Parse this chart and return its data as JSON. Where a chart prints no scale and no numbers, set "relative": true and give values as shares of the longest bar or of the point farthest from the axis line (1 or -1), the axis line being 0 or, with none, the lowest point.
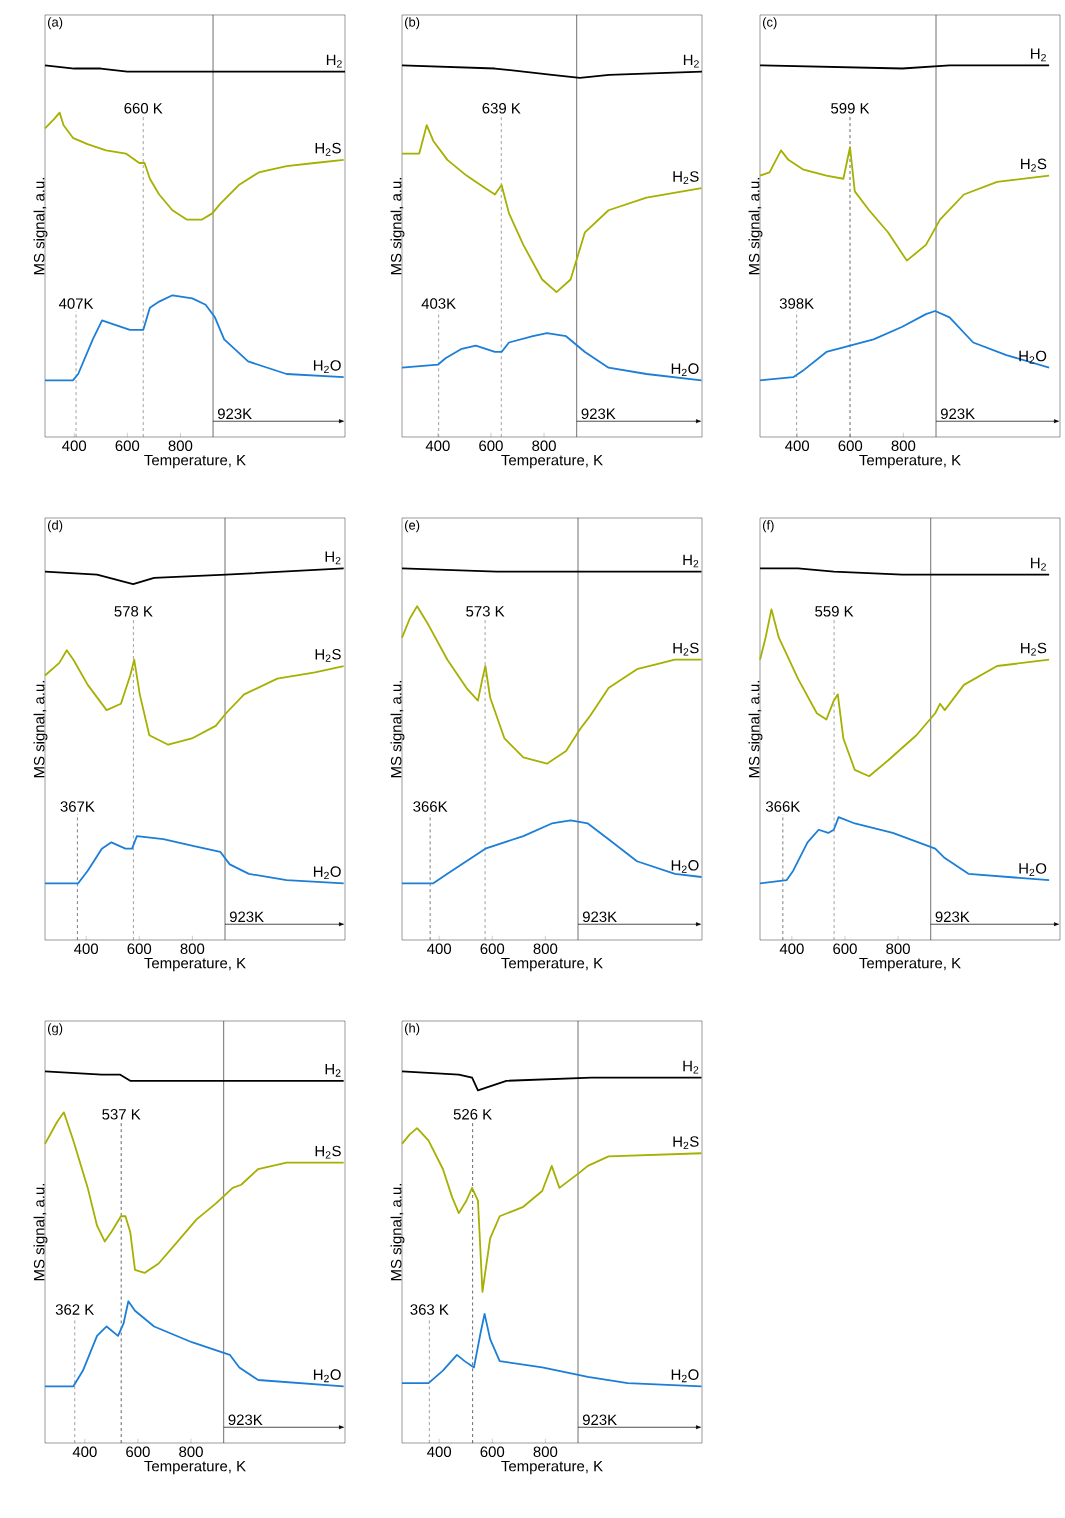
{
  "chart_data": [
    {
      "type": "line",
      "title": "(a)",
      "xlabel": "Temperature, K",
      "ylabel": "MS signal, a.u.",
      "relative": true,
      "tick_labels": "x",
      "xlim": [
        290,
        1420
      ],
      "xticks": [
        400,
        600,
        800
      ],
      "ref_lines": [
        {
          "axis": "x",
          "value": 407,
          "label": "407K",
          "line_style": "dashed",
          "color": "#777777"
        },
        {
          "axis": "x",
          "value": 660,
          "label": "660 K",
          "line_style": "dashed",
          "color": "#777777"
        },
        {
          "axis": "x",
          "value": 923,
          "label": "923K",
          "line_style": "solid",
          "color": "#333333"
        }
      ],
      "series": [
        {
          "name": "H$_{2}$",
          "color": "#000000",
          "x": [
            290,
            400,
            500,
            600,
            700,
            800,
            950,
            1100,
            1420
          ],
          "values": [
            1.0,
            0.99,
            0.99,
            0.98,
            0.98,
            0.98,
            0.98,
            0.98,
            0.98
          ]
        },
        {
          "name": "H$_{2}$S",
          "color": "#a5b000",
          "x": [
            290,
            325,
            345,
            360,
            395,
            450,
            520,
            595,
            645,
            665,
            685,
            720,
            770,
            825,
            880,
            920,
            950,
            1020,
            1095,
            1200,
            1305,
            1415
          ],
          "values": [
            0.8,
            0.83,
            0.85,
            0.81,
            0.77,
            0.75,
            0.73,
            0.72,
            0.69,
            0.69,
            0.64,
            0.59,
            0.54,
            0.51,
            0.51,
            0.53,
            0.56,
            0.62,
            0.66,
            0.68,
            0.69,
            0.7
          ]
        },
        {
          "name": "H$_{2}$O",
          "color": "#1c7ed6",
          "x": [
            290,
            395,
            415,
            470,
            505,
            540,
            610,
            660,
            685,
            720,
            770,
            845,
            895,
            930,
            965,
            1055,
            1200,
            1415
          ],
          "values": [
            0,
            0,
            0.02,
            0.13,
            0.19,
            0.18,
            0.16,
            0.16,
            0.23,
            0.25,
            0.27,
            0.26,
            0.24,
            0.2,
            0.13,
            0.06,
            0.02,
            0.01
          ]
        }
      ]
    },
    {
      "type": "line",
      "title": "(b)",
      "xlabel": "Temperature, K",
      "ylabel": "MS signal, a.u.",
      "relative": true,
      "tick_labels": "x",
      "xlim": [
        265,
        1395
      ],
      "xticks": [
        400,
        600,
        800
      ],
      "ref_lines": [
        {
          "axis": "x",
          "value": 403,
          "label": "403K",
          "line_style": "dashed",
          "color": "#777777"
        },
        {
          "axis": "x",
          "value": 639,
          "label": "639 K",
          "line_style": "dashed",
          "color": "#777777"
        },
        {
          "axis": "x",
          "value": 923,
          "label": "923K",
          "line_style": "solid",
          "color": "#333333"
        }
      ],
      "series": [
        {
          "name": "H$_{2}$",
          "color": "#000000",
          "x": [
            265,
            615,
            830,
            935,
            1045,
            1395
          ],
          "values": [
            1.0,
            0.99,
            0.97,
            0.96,
            0.97,
            0.98
          ]
        },
        {
          "name": "H$_{2}$S",
          "color": "#a5b000",
          "x": [
            265,
            330,
            358,
            383,
            436,
            508,
            579,
            615,
            640,
            668,
            722,
            793,
            847,
            900,
            954,
            1043,
            1186,
            1393
          ],
          "values": [
            0.72,
            0.72,
            0.81,
            0.76,
            0.7,
            0.65,
            0.61,
            0.59,
            0.62,
            0.53,
            0.43,
            0.32,
            0.28,
            0.32,
            0.47,
            0.54,
            0.58,
            0.61
          ]
        },
        {
          "name": "H$_{2}$O",
          "color": "#1c7ed6",
          "x": [
            265,
            401,
            429,
            490,
            543,
            615,
            640,
            668,
            758,
            811,
            883,
            954,
            1043,
            1186,
            1393
          ],
          "values": [
            0.04,
            0.05,
            0.07,
            0.1,
            0.11,
            0.09,
            0.09,
            0.12,
            0.14,
            0.15,
            0.14,
            0.09,
            0.04,
            0.02,
            0.0
          ]
        }
      ]
    },
    {
      "type": "line",
      "title": "(c)",
      "xlabel": "Temperature, K",
      "ylabel": "MS signal, a.u.",
      "relative": true,
      "tick_labels": "x",
      "xlim": [
        260,
        1390
      ],
      "xticks": [
        400,
        600,
        800
      ],
      "ref_lines": [
        {
          "axis": "x",
          "value": 398,
          "label": "398K",
          "line_style": "dashed",
          "color": "#777777"
        },
        {
          "axis": "x",
          "value": 599,
          "label": "599 K",
          "line_style": "dashed",
          "color": "#222222"
        },
        {
          "axis": "x",
          "value": 923,
          "label": "923K",
          "line_style": "solid",
          "color": "#333333"
        }
      ],
      "series": [
        {
          "name": "H$_{2}$",
          "color": "#000000",
          "x": [
            260,
            796,
            974,
            1349
          ],
          "values": [
            1.0,
            0.99,
            1.0,
            1.0
          ]
        },
        {
          "name": "H$_{2}$S",
          "color": "#a5b000",
          "x": [
            260,
            296,
            339,
            367,
            421,
            510,
            574,
            599,
            617,
            671,
            742,
            813,
            885,
            938,
            1028,
            1153,
            1349
          ],
          "values": [
            0.65,
            0.66,
            0.73,
            0.7,
            0.67,
            0.65,
            0.64,
            0.74,
            0.6,
            0.54,
            0.47,
            0.38,
            0.43,
            0.51,
            0.59,
            0.63,
            0.65
          ]
        },
        {
          "name": "H$_{2}$O",
          "color": "#1c7ed6",
          "x": [
            260,
            385,
            421,
            510,
            599,
            688,
            796,
            885,
            920,
            974,
            1063,
            1188,
            1349
          ],
          "values": [
            0,
            0.01,
            0.03,
            0.09,
            0.11,
            0.13,
            0.17,
            0.21,
            0.22,
            0.2,
            0.12,
            0.08,
            0.04
          ]
        }
      ]
    },
    {
      "type": "line",
      "title": "(d)",
      "xlabel": "Temperature, K",
      "ylabel": "MS signal, a.u.",
      "relative": true,
      "tick_labels": "x",
      "xlim": [
        245,
        1375
      ],
      "xticks": [
        400,
        600,
        800
      ],
      "ref_lines": [
        {
          "axis": "x",
          "value": 367,
          "label": "367K",
          "line_style": "dashed",
          "color": "#444444"
        },
        {
          "axis": "x",
          "value": 578,
          "label": "578 K",
          "line_style": "dashed",
          "color": "#777777"
        },
        {
          "axis": "x",
          "value": 923,
          "label": "923K",
          "line_style": "solid",
          "color": "#333333"
        }
      ],
      "series": [
        {
          "name": "H$_{2}$",
          "color": "#000000",
          "x": [
            245,
            441,
            577,
            656,
            927,
            1370
          ],
          "values": [
            0.99,
            0.98,
            0.95,
            0.97,
            0.98,
            1.0
          ]
        },
        {
          "name": "H$_{2}$S",
          "color": "#a5b000",
          "x": [
            245,
            299,
            327,
            352,
            406,
            477,
            531,
            566,
            581,
            602,
            638,
            709,
            798,
            888,
            927,
            995,
            1120,
            1262,
            1370
          ],
          "values": [
            0.66,
            0.7,
            0.74,
            0.71,
            0.63,
            0.55,
            0.57,
            0.66,
            0.71,
            0.6,
            0.47,
            0.44,
            0.46,
            0.5,
            0.54,
            0.6,
            0.65,
            0.67,
            0.69
          ]
        },
        {
          "name": "H$_{2}$O",
          "color": "#1c7ed6",
          "x": [
            245,
            370,
            406,
            459,
            495,
            548,
            573,
            591,
            691,
            798,
            905,
            941,
            1013,
            1155,
            1370
          ],
          "values": [
            0,
            0,
            0.04,
            0.11,
            0.13,
            0.11,
            0.11,
            0.15,
            0.14,
            0.12,
            0.1,
            0.06,
            0.03,
            0.01,
            0.0
          ]
        }
      ]
    },
    {
      "type": "line",
      "title": "(e)",
      "xlabel": "Temperature, K",
      "ylabel": "MS signal, a.u.",
      "relative": true,
      "tick_labels": "x",
      "xlim": [
        260,
        1390
      ],
      "xticks": [
        400,
        600,
        800
      ],
      "ref_lines": [
        {
          "axis": "x",
          "value": 366,
          "label": "366K",
          "line_style": "dashed",
          "color": "#444444"
        },
        {
          "axis": "x",
          "value": 573,
          "label": "573 K",
          "line_style": "dashed",
          "color": "#777777"
        },
        {
          "axis": "x",
          "value": 923,
          "label": "923K",
          "line_style": "solid",
          "color": "#333333"
        }
      ],
      "series": [
        {
          "name": "H$_{2}$",
          "color": "#000000",
          "x": [
            260,
            617,
            974,
            1388
          ],
          "values": [
            1.0,
            0.99,
            0.99,
            0.99
          ]
        },
        {
          "name": "H$_{2}$S",
          "color": "#a5b000",
          "x": [
            260,
            289,
            317,
            360,
            431,
            503,
            546,
            563,
            574,
            592,
            646,
            717,
            806,
            878,
            931,
            967,
            1038,
            1145,
            1288,
            1388
          ],
          "values": [
            0.78,
            0.84,
            0.88,
            0.82,
            0.71,
            0.62,
            0.58,
            0.65,
            0.69,
            0.59,
            0.46,
            0.4,
            0.38,
            0.42,
            0.49,
            0.53,
            0.62,
            0.68,
            0.71,
            0.71
          ]
        },
        {
          "name": "H$_{2}$O",
          "color": "#1c7ed6",
          "x": [
            260,
            378,
            431,
            574,
            717,
            824,
            895,
            960,
            1038,
            1145,
            1288,
            1388
          ],
          "values": [
            0,
            0,
            0.03,
            0.11,
            0.15,
            0.19,
            0.2,
            0.19,
            0.14,
            0.07,
            0.03,
            0.02
          ]
        }
      ]
    },
    {
      "type": "line",
      "title": "(f)",
      "xlabel": "Temperature, K",
      "ylabel": "MS signal, a.u.",
      "relative": true,
      "tick_labels": "x",
      "xlim": [
        280,
        1410
      ],
      "xticks": [
        400,
        600,
        800
      ],
      "ref_lines": [
        {
          "axis": "x",
          "value": 366,
          "label": "366K",
          "line_style": "dashed",
          "color": "#444444"
        },
        {
          "axis": "x",
          "value": 559,
          "label": "559 K",
          "line_style": "dashed",
          "color": "#777777"
        },
        {
          "axis": "x",
          "value": 923,
          "label": "923K",
          "line_style": "solid",
          "color": "#333333"
        }
      ],
      "series": [
        {
          "name": "H$_{2}$",
          "color": "#000000",
          "x": [
            280,
            423,
            558,
            816,
            1369
          ],
          "values": [
            1.0,
            1.0,
            0.99,
            0.98,
            0.98
          ]
        },
        {
          "name": "H$_{2}$S",
          "color": "#a5b000",
          "x": [
            280,
            301,
            323,
            351,
            423,
            494,
            530,
            558,
            573,
            594,
            637,
            691,
            762,
            869,
            940,
            958,
            976,
            1048,
            1173,
            1369
          ],
          "values": [
            0.71,
            0.78,
            0.87,
            0.78,
            0.65,
            0.54,
            0.52,
            0.58,
            0.6,
            0.46,
            0.36,
            0.34,
            0.39,
            0.47,
            0.54,
            0.57,
            0.55,
            0.63,
            0.69,
            0.71
          ]
        },
        {
          "name": "H$_{2}$O",
          "color": "#1c7ed6",
          "x": [
            280,
            380,
            405,
            459,
            501,
            537,
            558,
            576,
            637,
            780,
            940,
            976,
            1065,
            1369
          ],
          "values": [
            0,
            0.01,
            0.04,
            0.13,
            0.17,
            0.16,
            0.17,
            0.21,
            0.19,
            0.16,
            0.11,
            0.08,
            0.03,
            0.01
          ]
        }
      ]
    },
    {
      "type": "line",
      "title": "(g)",
      "xlabel": "Temperature, K",
      "ylabel": "MS signal, a.u.",
      "relative": true,
      "tick_labels": "x",
      "xlim": [
        250,
        1380
      ],
      "xticks": [
        400,
        600,
        800
      ],
      "ref_lines": [
        {
          "axis": "x",
          "value": 362,
          "label": "362 K",
          "line_style": "dashed",
          "color": "#777777"
        },
        {
          "axis": "x",
          "value": 537,
          "label": "537 K",
          "line_style": "dashed",
          "color": "#222222"
        },
        {
          "axis": "x",
          "value": 923,
          "label": "923K",
          "line_style": "solid",
          "color": "#333333"
        }
      ],
      "series": [
        {
          "name": "H$_{2}$",
          "color": "#000000",
          "x": [
            250,
            464,
            532,
            571,
            964,
            1375
          ],
          "values": [
            1.0,
            0.99,
            0.99,
            0.97,
            0.97,
            0.97
          ]
        },
        {
          "name": "H$_{2}$S",
          "color": "#a5b000",
          "x": [
            250,
            296,
            321,
            357,
            411,
            446,
            475,
            500,
            536,
            553,
            571,
            589,
            625,
            678,
            750,
            821,
            893,
            957,
            989,
            1053,
            1160,
            1375
          ],
          "values": [
            0.77,
            0.84,
            0.87,
            0.78,
            0.63,
            0.51,
            0.46,
            0.49,
            0.54,
            0.54,
            0.49,
            0.37,
            0.36,
            0.39,
            0.46,
            0.53,
            0.58,
            0.63,
            0.64,
            0.69,
            0.71,
            0.71
          ]
        },
        {
          "name": "H$_{2}$O",
          "color": "#1c7ed6",
          "x": [
            250,
            357,
            393,
            446,
            482,
            525,
            546,
            564,
            589,
            661,
            803,
            946,
            982,
            1053,
            1375
          ],
          "values": [
            0,
            0,
            0.05,
            0.16,
            0.19,
            0.16,
            0.2,
            0.27,
            0.24,
            0.19,
            0.14,
            0.1,
            0.06,
            0.02,
            0.0
          ]
        }
      ]
    },
    {
      "type": "line",
      "title": "(h)",
      "xlabel": "Temperature, K",
      "ylabel": "MS signal, a.u.",
      "relative": true,
      "tick_labels": "x",
      "xlim": [
        260,
        1390
      ],
      "xticks": [
        400,
        600,
        800
      ],
      "ref_lines": [
        {
          "axis": "x",
          "value": 363,
          "label": "363 K",
          "line_style": "dashed",
          "color": "#777777"
        },
        {
          "axis": "x",
          "value": 526,
          "label": "526 K",
          "line_style": "dashed",
          "color": "#222222"
        },
        {
          "axis": "x",
          "value": 923,
          "label": "923K",
          "line_style": "solid",
          "color": "#333333"
        }
      ],
      "series": [
        {
          "name": "H$_{2}$",
          "color": "#000000",
          "x": [
            260,
            474,
            524,
            546,
            653,
            974,
            1388
          ],
          "values": [
            1.0,
            0.99,
            0.98,
            0.94,
            0.97,
            0.98,
            0.98
          ]
        },
        {
          "name": "H$_{2}$S",
          "color": "#a5b000",
          "x": [
            260,
            289,
            317,
            360,
            414,
            449,
            474,
            503,
            524,
            546,
            563,
            592,
            628,
            717,
            788,
            824,
            853,
            931,
            960,
            1038,
            1388
          ],
          "values": [
            0.77,
            0.8,
            0.82,
            0.78,
            0.69,
            0.6,
            0.55,
            0.59,
            0.63,
            0.59,
            0.3,
            0.47,
            0.54,
            0.57,
            0.62,
            0.7,
            0.63,
            0.68,
            0.7,
            0.73,
            0.74
          ]
        },
        {
          "name": "H$_{2}$O",
          "color": "#1c7ed6",
          "x": [
            260,
            360,
            414,
            467,
            496,
            531,
            556,
            571,
            592,
            628,
            788,
            960,
            1110,
            1388
          ],
          "values": [
            0.01,
            0.01,
            0.05,
            0.1,
            0.08,
            0.06,
            0.17,
            0.23,
            0.15,
            0.08,
            0.06,
            0.03,
            0.01,
            0.0
          ]
        }
      ]
    }
  ]
}
